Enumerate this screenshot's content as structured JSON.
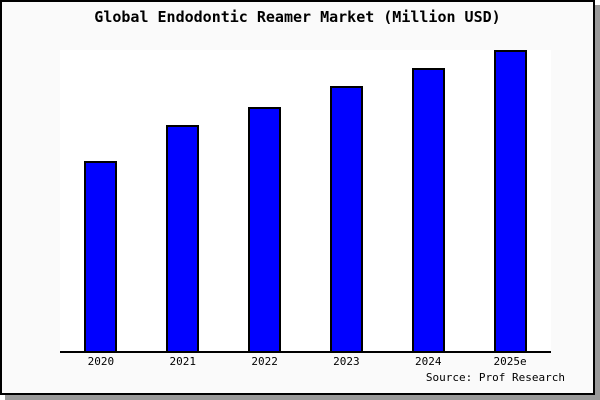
{
  "header": {
    "title": "Global Endodontic Reamer Market (Million USD)"
  },
  "footer": {
    "source": "Source: Prof Research"
  },
  "chart_data": {
    "type": "bar",
    "title": "Global Endodontic Reamer Market (Million USD)",
    "categories": [
      "2020",
      "2021",
      "2022",
      "2023",
      "2024",
      "2025e"
    ],
    "values": [
      63,
      75,
      81,
      88,
      94,
      100
    ],
    "xlabel": "",
    "ylabel": "",
    "ylim": [
      0,
      100
    ],
    "y_axis_labels_shown": false,
    "grid": false,
    "legend": "none",
    "note": "No numeric y-axis shown in source image; values are relative bar heights as percent of tallest bar (2025e = 100)",
    "colors": {
      "bar_fill": "#0000ff",
      "bar_border": "#000000",
      "plot_background": "#ffffff",
      "page_background": "#fafafa",
      "frame_border": "#000000",
      "frame_shadow": "#999999",
      "axis_line": "#000000",
      "text": "#000000"
    },
    "source": "Source: Prof Research"
  }
}
